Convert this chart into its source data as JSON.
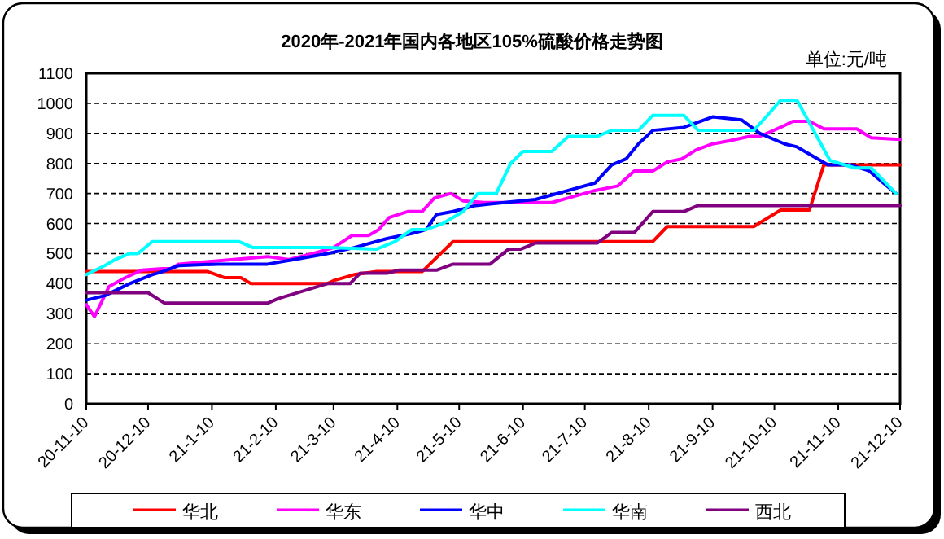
{
  "chart_data": {
    "type": "line",
    "title": "2020年-2021年国内各地区105%硫酸价格走势图",
    "annotations": [
      "单位:元/吨"
    ],
    "xlim": [
      "2020-11-10",
      "2021-12-10"
    ],
    "ylim": [
      0,
      1100
    ],
    "xticks": [
      {
        "value": "2020-11-10",
        "label": "20-11-10"
      },
      {
        "value": "2020-12-10",
        "label": "20-12-10"
      },
      {
        "value": "2021-01-10",
        "label": "21-1-10"
      },
      {
        "value": "2021-02-10",
        "label": "21-2-10"
      },
      {
        "value": "2021-03-10",
        "label": "21-3-10"
      },
      {
        "value": "2021-04-10",
        "label": "21-4-10"
      },
      {
        "value": "2021-05-10",
        "label": "21-5-10"
      },
      {
        "value": "2021-06-10",
        "label": "21-6-10"
      },
      {
        "value": "2021-07-10",
        "label": "21-7-10"
      },
      {
        "value": "2021-08-10",
        "label": "21-8-10"
      },
      {
        "value": "2021-09-10",
        "label": "21-9-10"
      },
      {
        "value": "2021-10-10",
        "label": "21-10-10"
      },
      {
        "value": "2021-11-10",
        "label": "21-11-10"
      },
      {
        "value": "2021-12-10",
        "label": "21-12-10"
      }
    ],
    "yticks": [
      0,
      100,
      200,
      300,
      400,
      500,
      600,
      700,
      800,
      900,
      1000,
      1100
    ],
    "grid": "y",
    "legend": "bottom",
    "marker": "none",
    "line_style": "solid",
    "series": [
      {
        "name": "华北",
        "color": "#ff0000",
        "x": [
          "2020-11-10",
          "2021-01-08",
          "2021-01-16",
          "2021-01-24",
          "2021-01-29",
          "2021-03-07",
          "2021-03-10",
          "2021-03-20",
          "2021-03-31",
          "2021-04-22",
          "2021-05-07",
          "2021-08-12",
          "2021-08-19",
          "2021-09-30",
          "2021-10-13",
          "2021-10-27",
          "2021-11-03",
          "2021-12-10"
        ],
        "values": [
          440,
          440,
          420,
          420,
          400,
          400,
          410,
          430,
          440,
          440,
          540,
          540,
          590,
          590,
          645,
          645,
          795,
          795
        ]
      },
      {
        "name": "华东",
        "color": "#ff00ff",
        "x": [
          "2020-11-10",
          "2020-11-14",
          "2020-11-21",
          "2020-11-29",
          "2020-12-07",
          "2020-12-17",
          "2020-12-21",
          "2020-12-25",
          "2021-02-06",
          "2021-02-16",
          "2021-02-28",
          "2021-03-10",
          "2021-03-19",
          "2021-03-27",
          "2021-04-01",
          "2021-04-06",
          "2021-04-15",
          "2021-04-22",
          "2021-04-28",
          "2021-05-06",
          "2021-05-12",
          "2021-05-22",
          "2021-06-24",
          "2021-07-02",
          "2021-07-15",
          "2021-07-26",
          "2021-08-03",
          "2021-08-12",
          "2021-08-19",
          "2021-08-26",
          "2021-09-02",
          "2021-09-10",
          "2021-09-18",
          "2021-09-28",
          "2021-10-03",
          "2021-10-13",
          "2021-10-19",
          "2021-10-27",
          "2021-11-03",
          "2021-11-19",
          "2021-11-26",
          "2021-12-10"
        ],
        "values": [
          330,
          290,
          390,
          420,
          445,
          450,
          450,
          465,
          490,
          480,
          500,
          520,
          560,
          560,
          580,
          620,
          640,
          640,
          685,
          700,
          675,
          670,
          670,
          685,
          710,
          725,
          775,
          775,
          805,
          815,
          845,
          865,
          875,
          890,
          890,
          920,
          940,
          940,
          915,
          915,
          885,
          880
        ]
      },
      {
        "name": "华中",
        "color": "#0000ff",
        "x": [
          "2020-11-10",
          "2020-11-19",
          "2020-12-01",
          "2020-12-12",
          "2020-12-17",
          "2020-12-25",
          "2021-01-13",
          "2021-02-06",
          "2021-02-19",
          "2021-03-07",
          "2021-03-20",
          "2021-04-05",
          "2021-04-19",
          "2021-04-24",
          "2021-04-29",
          "2021-05-07",
          "2021-05-18",
          "2021-05-25",
          "2021-06-16",
          "2021-06-24",
          "2021-07-02",
          "2021-07-15",
          "2021-07-23",
          "2021-07-30",
          "2021-08-05",
          "2021-08-12",
          "2021-08-27",
          "2021-09-10",
          "2021-09-24",
          "2021-10-03",
          "2021-10-15",
          "2021-10-21",
          "2021-11-05",
          "2021-11-16",
          "2021-11-25",
          "2021-12-08"
        ],
        "values": [
          345,
          360,
          400,
          430,
          440,
          460,
          465,
          465,
          480,
          500,
          520,
          550,
          570,
          580,
          630,
          640,
          660,
          665,
          680,
          695,
          710,
          735,
          795,
          815,
          865,
          910,
          920,
          955,
          945,
          900,
          865,
          855,
          795,
          795,
          775,
          700
        ]
      },
      {
        "name": "华南",
        "color": "#00ffff",
        "x": [
          "2020-11-10",
          "2020-11-19",
          "2020-11-24",
          "2020-12-01",
          "2020-12-05",
          "2020-12-12",
          "2021-01-23",
          "2021-01-30",
          "2021-03-07",
          "2021-03-31",
          "2021-04-09",
          "2021-04-17",
          "2021-04-24",
          "2021-05-02",
          "2021-05-12",
          "2021-05-19",
          "2021-05-28",
          "2021-06-04",
          "2021-06-10",
          "2021-06-24",
          "2021-07-02",
          "2021-07-16",
          "2021-07-23",
          "2021-08-05",
          "2021-08-12",
          "2021-08-27",
          "2021-09-03",
          "2021-09-30",
          "2021-10-06",
          "2021-10-13",
          "2021-10-21",
          "2021-10-29",
          "2021-11-06",
          "2021-11-18",
          "2021-11-26",
          "2021-12-08"
        ],
        "values": [
          430,
          460,
          480,
          500,
          500,
          540,
          540,
          520,
          520,
          515,
          540,
          580,
          580,
          600,
          640,
          700,
          700,
          800,
          840,
          840,
          890,
          890,
          910,
          910,
          960,
          960,
          910,
          910,
          955,
          1010,
          1010,
          910,
          810,
          785,
          785,
          700
        ]
      },
      {
        "name": "西北",
        "color": "#800080",
        "x": [
          "2020-11-10",
          "2020-12-10",
          "2020-12-18",
          "2021-02-06",
          "2021-02-11",
          "2021-03-07",
          "2021-03-18",
          "2021-03-23",
          "2021-04-05",
          "2021-04-11",
          "2021-04-29",
          "2021-05-07",
          "2021-05-25",
          "2021-06-03",
          "2021-06-09",
          "2021-06-16",
          "2021-07-16",
          "2021-07-23",
          "2021-08-03",
          "2021-08-12",
          "2021-08-27",
          "2021-09-03",
          "2021-12-10"
        ],
        "values": [
          370,
          370,
          335,
          335,
          350,
          400,
          400,
          435,
          435,
          445,
          445,
          465,
          465,
          515,
          515,
          535,
          535,
          570,
          570,
          640,
          640,
          660,
          660
        ]
      }
    ]
  }
}
